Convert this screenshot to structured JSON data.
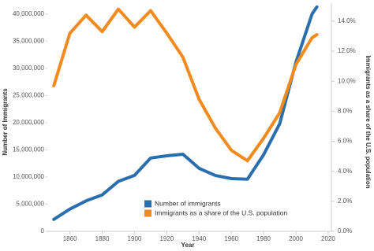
{
  "chart_data": {
    "type": "line",
    "x_label": "Year",
    "y_label": "Number of Immigrants",
    "y2_label": "Immigrants as a share of the U.S. population",
    "x": [
      1850,
      1860,
      1870,
      1880,
      1890,
      1900,
      1910,
      1920,
      1930,
      1940,
      1950,
      1960,
      1970,
      1980,
      1990,
      2000,
      2010,
      2013
    ],
    "series": [
      {
        "name": "Number of immigrants",
        "color": "#2a6fad",
        "values": [
          2200000,
          4100000,
          5600000,
          6700000,
          9200000,
          10300000,
          13500000,
          13900000,
          14200000,
          11600000,
          10300000,
          9700000,
          9600000,
          14100000,
          19800000,
          31100000,
          40000000,
          41300000
        ]
      },
      {
        "name": "Immigrants as a share of the U.S. population",
        "color": "#f28a1e",
        "axis": "y2",
        "values": [
          9.7,
          13.2,
          14.4,
          13.3,
          14.8,
          13.6,
          14.7,
          13.2,
          11.6,
          8.8,
          6.9,
          5.4,
          4.7,
          6.2,
          7.9,
          11.1,
          12.9,
          13.1
        ]
      }
    ],
    "xlim": [
      1846,
      2022
    ],
    "xticks": [
      1860,
      1880,
      1900,
      1920,
      1940,
      1960,
      1980,
      2000,
      2020
    ],
    "ylim": [
      0,
      42000000
    ],
    "yticks": [
      0,
      {
        "value": 5000000,
        "label": "5,000,000"
      },
      {
        "value": 10000000,
        "label": "10,000,000"
      },
      {
        "value": 15000000,
        "label": "15,000,000"
      },
      {
        "value": 20000000,
        "label": "20,000,000"
      },
      {
        "value": 25000000,
        "label": "25,000,000"
      },
      {
        "value": 30000000,
        "label": "30,000,000"
      },
      {
        "value": 35000000,
        "label": "35,000,000"
      },
      {
        "value": 40000000,
        "label": "40,000,000"
      }
    ],
    "y2lim": [
      0,
      15.2
    ],
    "y2ticks": [
      {
        "value": 0,
        "label": "0.0%"
      },
      {
        "value": 2,
        "label": "2.0%"
      },
      {
        "value": 4,
        "label": "4.0%"
      },
      {
        "value": 6,
        "label": "6.0%"
      },
      {
        "value": 8,
        "label": "8.0%"
      },
      {
        "value": 10,
        "label": "10.0%"
      },
      {
        "value": 12,
        "label": "12.0%"
      },
      {
        "value": 14,
        "label": "14.0%"
      }
    ]
  }
}
